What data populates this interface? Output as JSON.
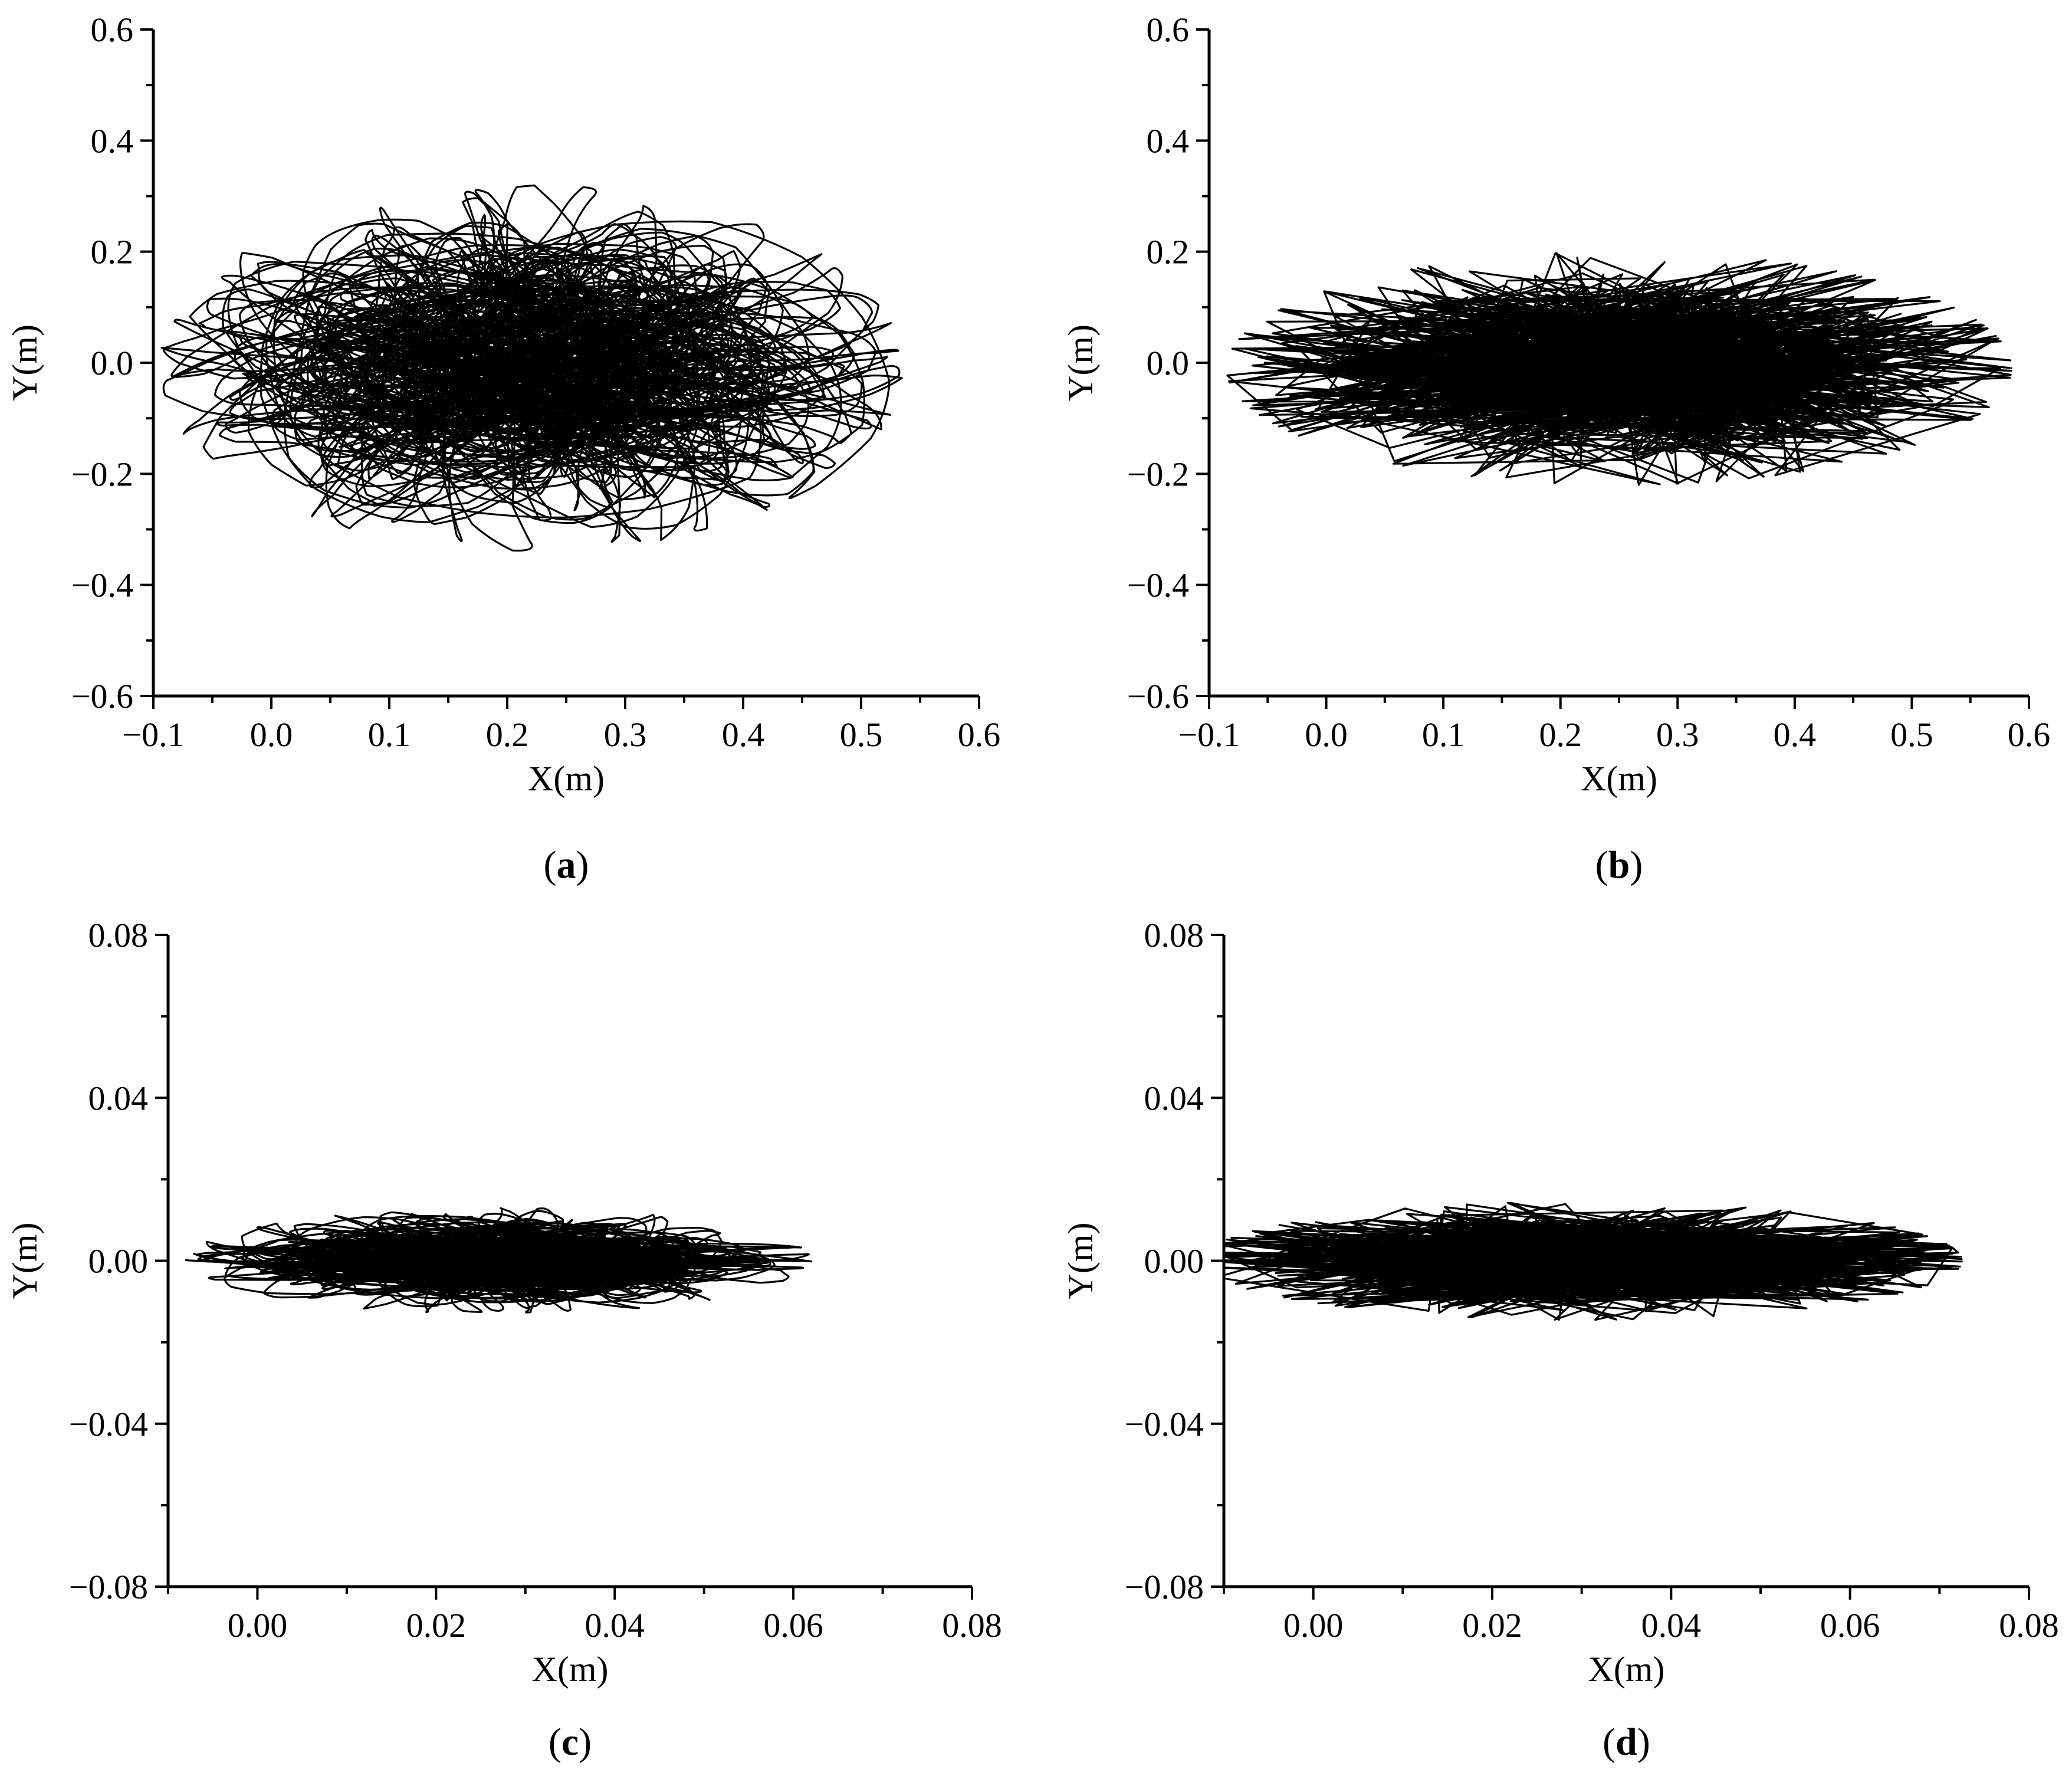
{
  "chart_data": [
    {
      "type": "line",
      "panel_label": "a",
      "xlabel": "X(m)",
      "ylabel": "Y(m)",
      "xlim": [
        -0.1,
        0.6
      ],
      "ylim": [
        -0.6,
        0.6
      ],
      "x_ticks": [
        -0.1,
        0.0,
        0.1,
        0.2,
        0.3,
        0.4,
        0.5,
        0.6
      ],
      "y_ticks": [
        -0.6,
        -0.4,
        -0.2,
        0.0,
        0.2,
        0.4,
        0.6
      ],
      "x_tick_labels": [
        "−0.1",
        "0.0",
        "0.1",
        "0.2",
        "0.3",
        "0.4",
        "0.5",
        "0.6"
      ],
      "y_tick_labels": [
        "−0.6",
        "−0.4",
        "−0.2",
        "0.0",
        "0.2",
        "0.4",
        "0.6"
      ],
      "trajectory": {
        "style": "smooth",
        "center": [
          0.22,
          -0.01
        ],
        "x_extent": [
          -0.09,
          0.54
        ],
        "y_extent": [
          -0.33,
          0.33
        ],
        "line_color": "#000000"
      }
    },
    {
      "type": "line",
      "panel_label": "b",
      "xlabel": "X(m)",
      "ylabel": "Y(m)",
      "xlim": [
        -0.1,
        0.6
      ],
      "ylim": [
        -0.6,
        0.6
      ],
      "x_ticks": [
        -0.1,
        0.0,
        0.1,
        0.2,
        0.3,
        0.4,
        0.5,
        0.6
      ],
      "y_ticks": [
        -0.6,
        -0.4,
        -0.2,
        0.0,
        0.2,
        0.4,
        0.6
      ],
      "x_tick_labels": [
        "−0.1",
        "0.0",
        "0.1",
        "0.2",
        "0.3",
        "0.4",
        "0.5",
        "0.6"
      ],
      "y_tick_labels": [
        "−0.6",
        "−0.4",
        "−0.2",
        "0.0",
        "0.2",
        "0.4",
        "0.6"
      ],
      "trajectory": {
        "style": "jagged",
        "center": [
          0.25,
          -0.01
        ],
        "x_extent": [
          -0.08,
          0.59
        ],
        "y_extent": [
          -0.22,
          0.2
        ],
        "line_color": "#000000"
      }
    },
    {
      "type": "line",
      "panel_label": "c",
      "xlabel": "X(m)",
      "ylabel": "Y(m)",
      "xlim": [
        -0.01,
        0.08
      ],
      "ylim": [
        -0.08,
        0.08
      ],
      "x_ticks": [
        0.0,
        0.02,
        0.04,
        0.06,
        0.08
      ],
      "y_ticks": [
        -0.08,
        -0.04,
        0.0,
        0.04,
        0.08
      ],
      "x_tick_labels": [
        "0.00",
        "0.02",
        "0.04",
        "0.06",
        "0.08"
      ],
      "y_tick_labels": [
        "−0.08",
        "−0.04",
        "0.00",
        "0.04",
        "0.08"
      ],
      "trajectory": {
        "style": "smooth",
        "center": [
          0.027,
          0.0
        ],
        "x_extent": [
          -0.007,
          0.063
        ],
        "y_extent": [
          -0.014,
          0.012
        ],
        "line_color": "#000000"
      }
    },
    {
      "type": "line",
      "panel_label": "d",
      "xlabel": "X(m)",
      "ylabel": "Y(m)",
      "xlim": [
        -0.01,
        0.08
      ],
      "ylim": [
        -0.08,
        0.08
      ],
      "x_ticks": [
        0.0,
        0.02,
        0.04,
        0.06,
        0.08
      ],
      "y_ticks": [
        -0.08,
        -0.04,
        0.0,
        0.04,
        0.08
      ],
      "x_tick_labels": [
        "0.00",
        "0.02",
        "0.04",
        "0.06",
        "0.08"
      ],
      "y_tick_labels": [
        "−0.08",
        "−0.04",
        "0.00",
        "0.04",
        "0.08"
      ],
      "trajectory": {
        "style": "jagged",
        "center": [
          0.03,
          0.0
        ],
        "x_extent": [
          -0.009,
          0.076
        ],
        "y_extent": [
          -0.015,
          0.014
        ],
        "line_color": "#000000"
      }
    }
  ]
}
